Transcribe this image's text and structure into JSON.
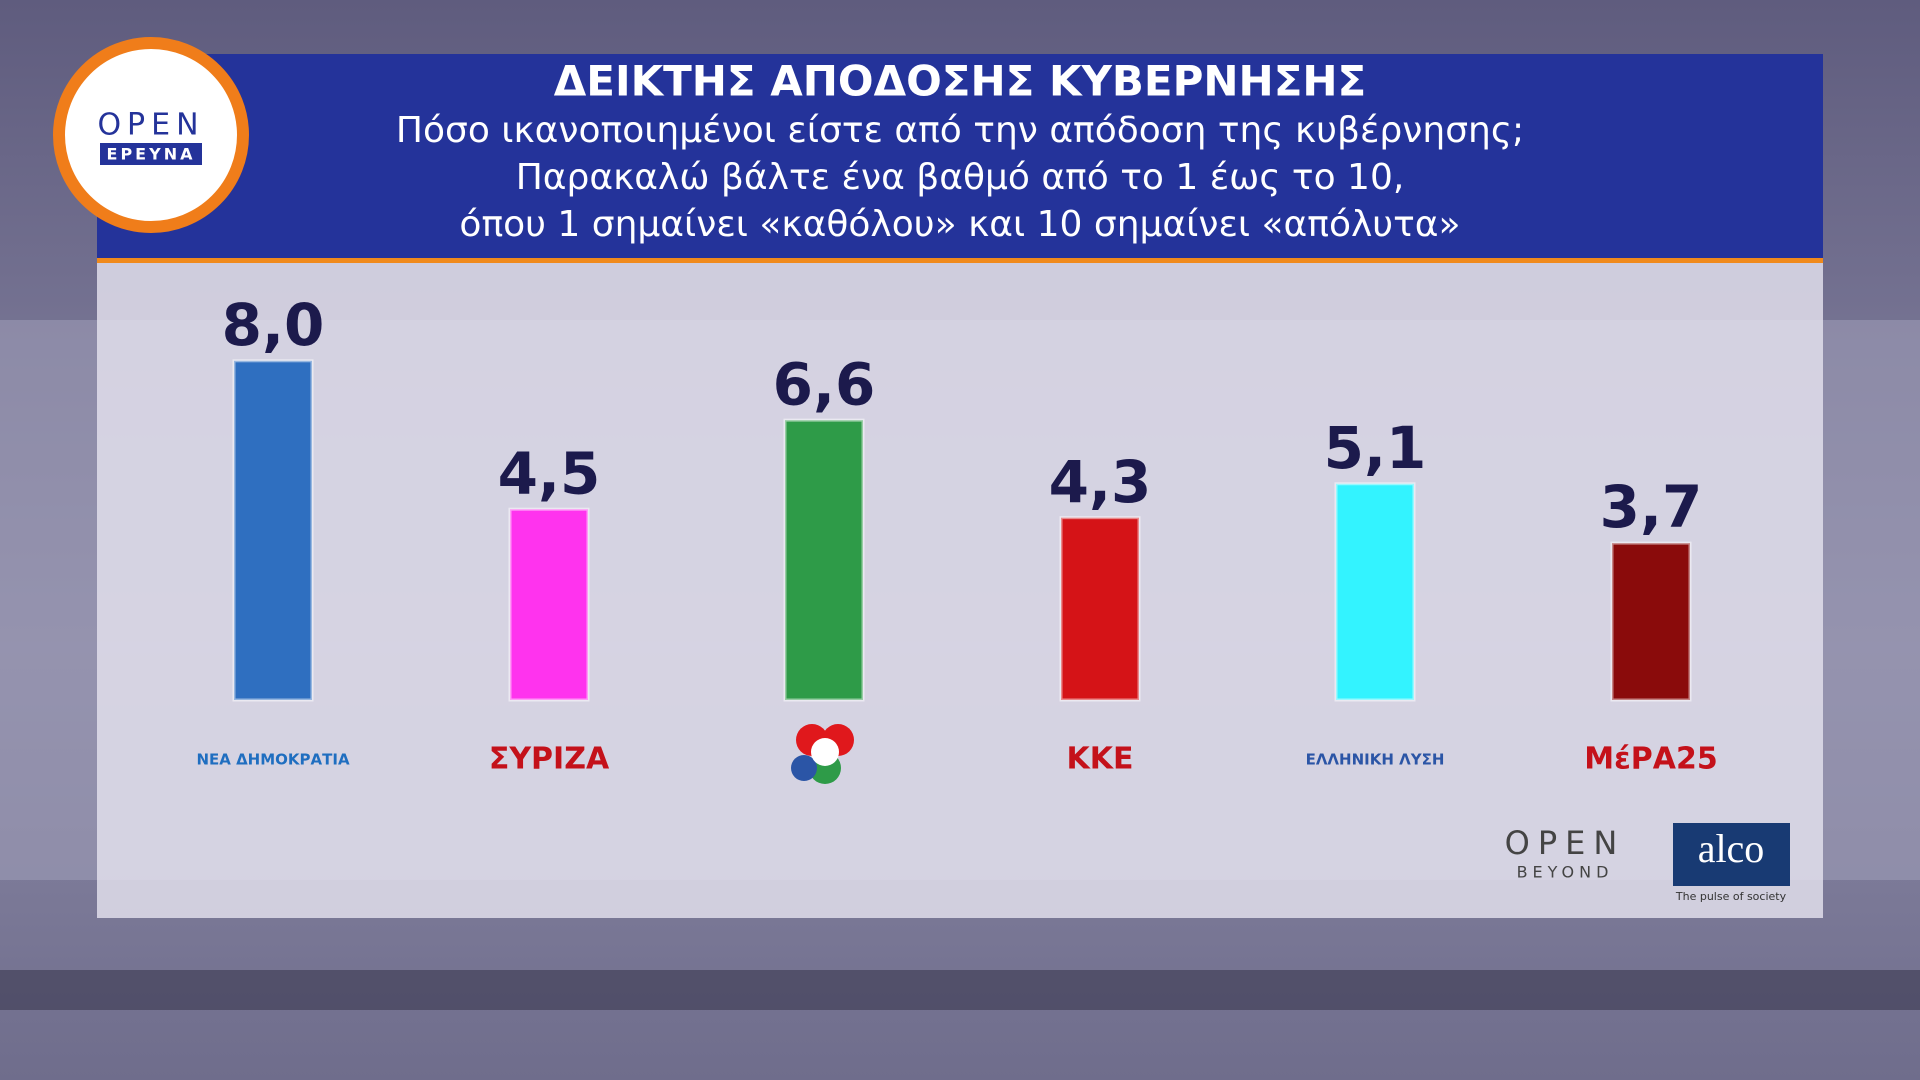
{
  "chart_data": {
    "type": "bar",
    "title": "ΔΕΙΚΤΗΣ ΑΠΟΔΟΣΗΣ ΚΥΒΕΡΝΗΣΗΣ",
    "subtitle": [
      "Πόσο ικανοποιημένοι είστε από την απόδοση της κυβέρνησης;",
      "Παρακαλώ βάλτε ένα βαθμό από το 1 έως το 10,",
      "όπου 1 σημαίνει «καθόλου» και 10 σημαίνει «απόλυτα»"
    ],
    "categories": [
      "ΝΕΑ ΔΗΜΟΚΡΑΤΙΑ",
      "ΣΥΡΙΖΑ",
      null,
      "ΚΚΕ",
      "ΕΛΛΗΝΙΚΗ ΛΥΣΗ",
      "ΜέΡΑ25"
    ],
    "values": [
      8.0,
      4.5,
      6.6,
      4.3,
      5.1,
      3.7
    ],
    "value_labels": [
      "8,0",
      "4,5",
      "6,6",
      "4,3",
      "5,1",
      "3,7"
    ],
    "colors": [
      "#2f6fc0",
      "#ff33ee",
      "#2e9b48",
      "#d51317",
      "#33f3ff",
      "#8a0b0b"
    ]
  },
  "logos": {
    "open": "OPEN",
    "ereuna": "ΕΡΕΥΝΑ",
    "open_beyond": "OPEN",
    "beyond": "BEYOND",
    "alco": "alco",
    "alco_tagline": "The pulse of society"
  }
}
